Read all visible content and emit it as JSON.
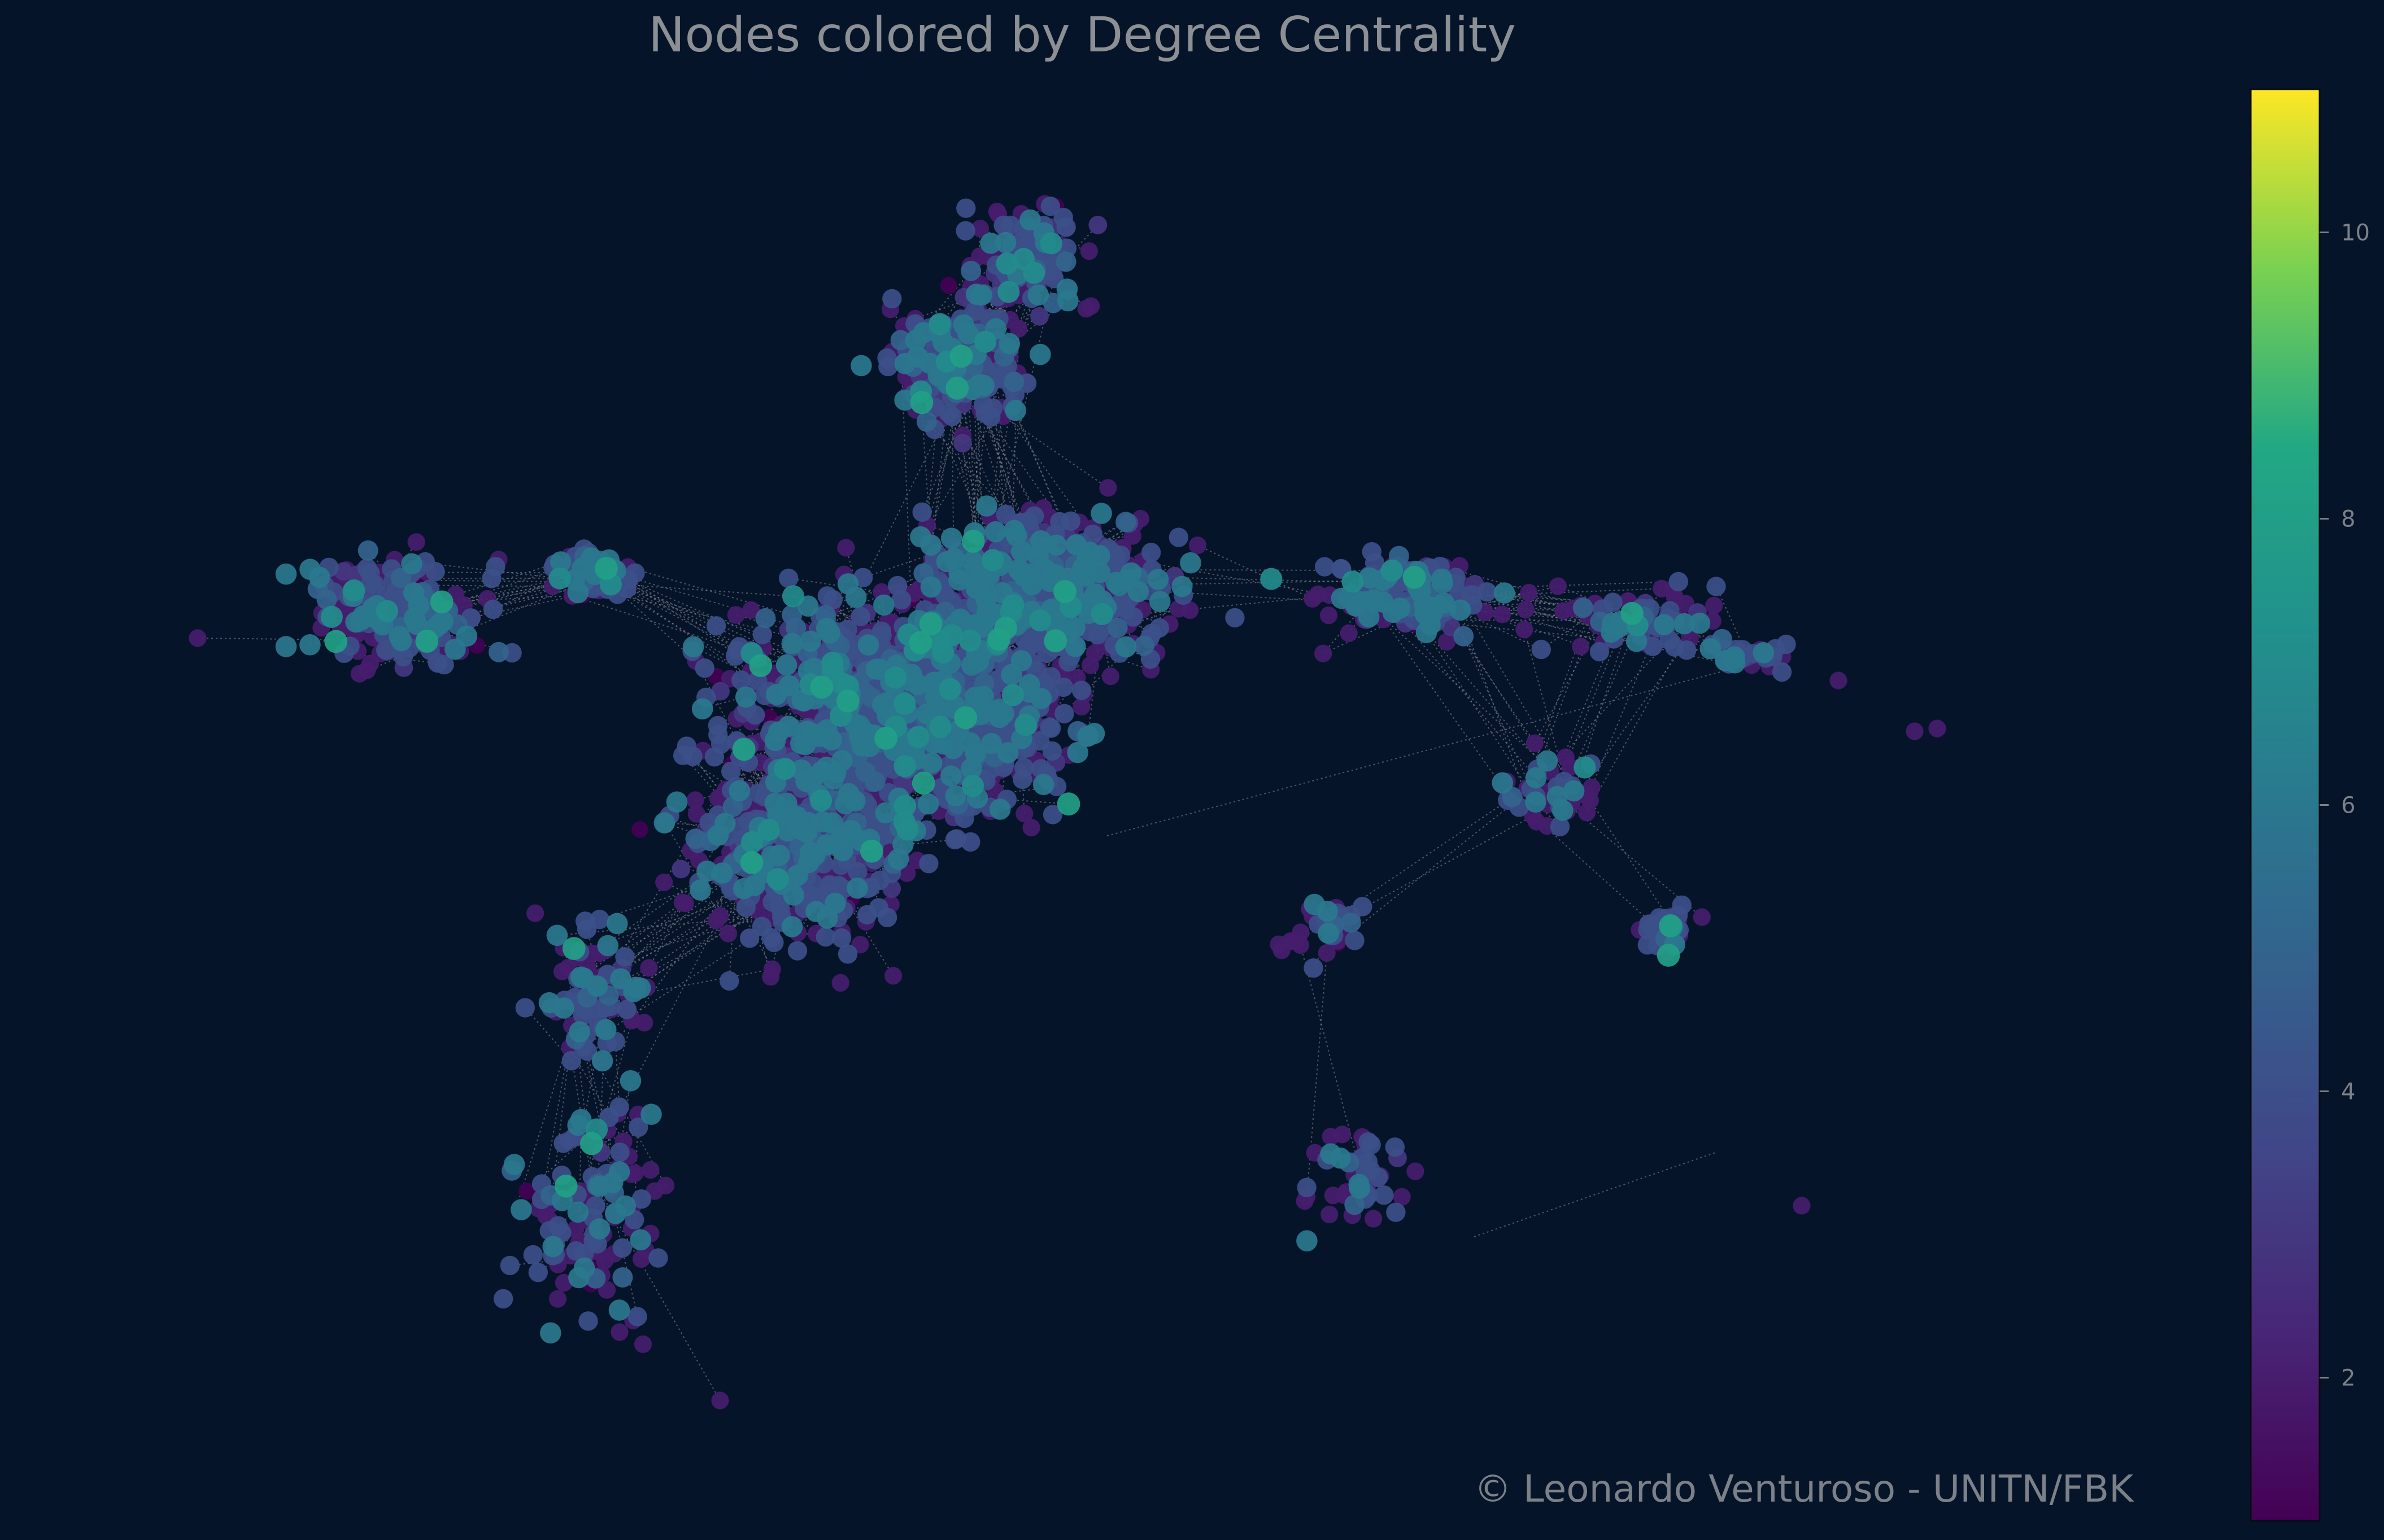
{
  "chart_data": {
    "type": "scatter",
    "title": "Nodes colored by Degree Centrality",
    "xlabel": "",
    "ylabel": "",
    "colorbar": {
      "label": "",
      "range": [
        1,
        11
      ],
      "ticks": [
        2,
        4,
        6,
        8,
        10
      ],
      "tick_labels": [
        "2",
        "4",
        "6",
        "8",
        "10"
      ],
      "colormap": "viridis",
      "location": "right"
    },
    "grid": false,
    "legend": "none",
    "node_count_description": "dense street-network graph of nodes connected by dotted edges",
    "value_distribution": {
      "degrees": [
        1,
        2,
        3,
        4,
        5,
        6,
        7,
        8
      ],
      "approx_share": [
        0.02,
        0.38,
        0.05,
        0.35,
        0.05,
        0.12,
        0.02,
        0.01
      ]
    },
    "colors": {
      "background": "#061429",
      "edge": "#8a8f99"
    }
  },
  "watermark": "© Leonardo Venturoso - UNITN/FBK"
}
